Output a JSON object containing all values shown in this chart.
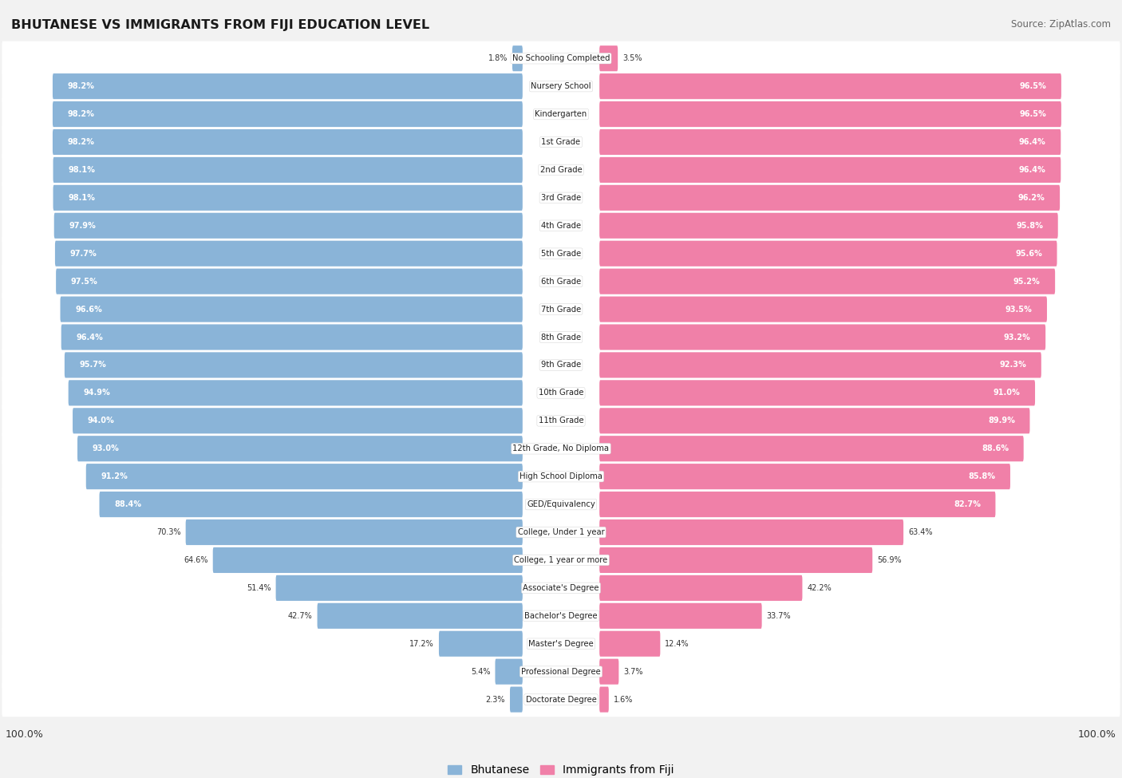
{
  "title": "BHUTANESE VS IMMIGRANTS FROM FIJI EDUCATION LEVEL",
  "source": "Source: ZipAtlas.com",
  "categories": [
    "No Schooling Completed",
    "Nursery School",
    "Kindergarten",
    "1st Grade",
    "2nd Grade",
    "3rd Grade",
    "4th Grade",
    "5th Grade",
    "6th Grade",
    "7th Grade",
    "8th Grade",
    "9th Grade",
    "10th Grade",
    "11th Grade",
    "12th Grade, No Diploma",
    "High School Diploma",
    "GED/Equivalency",
    "College, Under 1 year",
    "College, 1 year or more",
    "Associate's Degree",
    "Bachelor's Degree",
    "Master's Degree",
    "Professional Degree",
    "Doctorate Degree"
  ],
  "bhutanese": [
    1.8,
    98.2,
    98.2,
    98.2,
    98.1,
    98.1,
    97.9,
    97.7,
    97.5,
    96.6,
    96.4,
    95.7,
    94.9,
    94.0,
    93.0,
    91.2,
    88.4,
    70.3,
    64.6,
    51.4,
    42.7,
    17.2,
    5.4,
    2.3
  ],
  "fiji": [
    3.5,
    96.5,
    96.5,
    96.4,
    96.4,
    96.2,
    95.8,
    95.6,
    95.2,
    93.5,
    93.2,
    92.3,
    91.0,
    89.9,
    88.6,
    85.8,
    82.7,
    63.4,
    56.9,
    42.2,
    33.7,
    12.4,
    3.7,
    1.6
  ],
  "blue_color": "#8ab4d8",
  "pink_color": "#f080a8",
  "bg_color": "#f2f2f2",
  "row_bg_color": "#ffffff",
  "row_alt_color": "#f8f8f8",
  "legend_blue": "Bhutanese",
  "legend_pink": "Immigrants from Fiji",
  "inside_label_threshold": 80
}
